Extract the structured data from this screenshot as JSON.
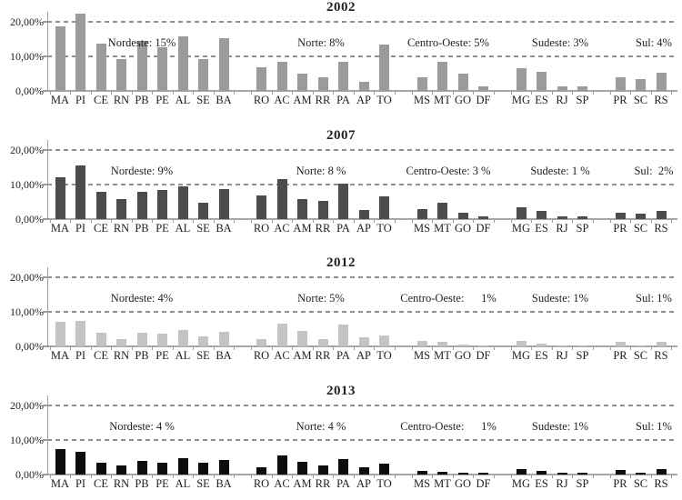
{
  "colors": {
    "background": "#ffffff",
    "text": "#1f1f1f",
    "gridline": "#8f8f8f",
    "axis": "#9c9c9c",
    "bar_2002": "#9b9b99",
    "bar_2007": "#4d4d4d",
    "bar_2012": "#c4c4c2",
    "bar_2013": "#0d0d0d"
  },
  "chart_data": [
    {
      "type": "bar",
      "title": "2002",
      "bar_color": "#9b9b99",
      "y_tick_labels": [
        "20,00%",
        "10,00%",
        "0,00%"
      ],
      "ylim": [
        0,
        23
      ],
      "grid": "dashed-horizontal",
      "unit": "percent",
      "groups": [
        {
          "region": "Nordeste",
          "annotation": "Nordeste: 15%",
          "states": [
            "MA",
            "PI",
            "CE",
            "RN",
            "PB",
            "PE",
            "AL",
            "SE",
            "BA"
          ],
          "values": [
            18.8,
            22.4,
            13.8,
            9.3,
            14.4,
            12.6,
            15.8,
            9.3,
            15.3
          ]
        },
        {
          "region": "Norte",
          "annotation": "Norte: 8%",
          "states": [
            "RO",
            "AC",
            "AM",
            "RR",
            "PA",
            "AP",
            "TO"
          ],
          "values": [
            6.8,
            8.5,
            5.0,
            4.0,
            8.5,
            2.6,
            13.5
          ]
        },
        {
          "region": "Centro-Oeste",
          "annotation": "Centro-Oeste: 5%",
          "states": [
            "MS",
            "MT",
            "GO",
            "DF"
          ],
          "values": [
            4.0,
            8.5,
            4.9,
            1.3
          ]
        },
        {
          "region": "Sudeste",
          "annotation": "Sudeste: 3%",
          "states": [
            "MG",
            "ES",
            "RJ",
            "SP"
          ],
          "values": [
            6.7,
            5.4,
            1.3,
            1.3
          ]
        },
        {
          "region": "Sul",
          "annotation": "Sul: 4%",
          "states": [
            "PR",
            "SC",
            "RS"
          ],
          "values": [
            4.0,
            3.4,
            5.3
          ]
        }
      ]
    },
    {
      "type": "bar",
      "title": "2007",
      "bar_color": "#4d4d4d",
      "y_tick_labels": [
        "20,00%",
        "10,00%",
        "0,00%"
      ],
      "ylim": [
        0,
        23
      ],
      "grid": "dashed-horizontal",
      "unit": "percent",
      "groups": [
        {
          "region": "Nordeste",
          "annotation": "Nordeste: 9%",
          "states": [
            "MA",
            "PI",
            "CE",
            "RN",
            "PB",
            "PE",
            "AL",
            "SE",
            "BA"
          ],
          "values": [
            12.2,
            15.4,
            8.0,
            5.7,
            8.0,
            8.4,
            9.6,
            4.8,
            8.7
          ]
        },
        {
          "region": "Norte",
          "annotation": "Norte: 8 %",
          "states": [
            "RO",
            "AC",
            "AM",
            "RR",
            "PA",
            "AP",
            "TO"
          ],
          "values": [
            6.8,
            11.6,
            5.9,
            5.3,
            10.2,
            2.6,
            6.6
          ]
        },
        {
          "region": "Centro-Oeste",
          "annotation": "Centro-Oeste: 3 %",
          "states": [
            "MS",
            "MT",
            "GO",
            "DF"
          ],
          "values": [
            2.9,
            4.8,
            1.9,
            0.8
          ]
        },
        {
          "region": "Sudeste",
          "annotation": "Sudeste: 1 %",
          "states": [
            "MG",
            "ES",
            "RJ",
            "SP"
          ],
          "values": [
            3.3,
            2.3,
            0.7,
            0.8
          ]
        },
        {
          "region": "Sul",
          "annotation": "Sul:  2%",
          "states": [
            "PR",
            "SC",
            "RS"
          ],
          "values": [
            1.8,
            1.5,
            2.3
          ]
        }
      ]
    },
    {
      "type": "bar",
      "title": "2012",
      "bar_color": "#c4c4c2",
      "y_tick_labels": [
        "20,00%",
        "10,00%",
        "0,00%"
      ],
      "ylim": [
        0,
        23
      ],
      "grid": "dashed-horizontal",
      "unit": "percent",
      "groups": [
        {
          "region": "Nordeste",
          "annotation": "Nordeste: 4%",
          "states": [
            "MA",
            "PI",
            "CE",
            "RN",
            "PB",
            "PE",
            "AL",
            "SE",
            "BA"
          ],
          "values": [
            7.0,
            7.4,
            4.0,
            2.2,
            4.0,
            3.6,
            4.8,
            2.9,
            4.3
          ]
        },
        {
          "region": "Norte",
          "annotation": "Norte: 5%",
          "states": [
            "RO",
            "AC",
            "AM",
            "RR",
            "PA",
            "AP",
            "TO"
          ],
          "values": [
            2.2,
            6.6,
            4.4,
            2.2,
            6.3,
            2.5,
            3.2
          ]
        },
        {
          "region": "Centro-Oeste",
          "annotation": "Centro-Oeste:      1%",
          "states": [
            "MS",
            "MT",
            "GO",
            "DF"
          ],
          "values": [
            1.6,
            1.2,
            0.6,
            0.2
          ]
        },
        {
          "region": "Sudeste",
          "annotation": "Sudeste: 1%",
          "states": [
            "MG",
            "ES",
            "RJ",
            "SP"
          ],
          "values": [
            1.6,
            0.9,
            0.3,
            0.2
          ]
        },
        {
          "region": "Sul",
          "annotation": "Sul: 1%",
          "states": [
            "PR",
            "SC",
            "RS"
          ],
          "values": [
            1.3,
            0.3,
            1.3
          ]
        }
      ]
    },
    {
      "type": "bar",
      "title": "2013",
      "bar_color": "#0d0d0d",
      "y_tick_labels": [
        "20,00%",
        "10,00%",
        "0,00%"
      ],
      "ylim": [
        0,
        23
      ],
      "grid": "dashed-horizontal",
      "unit": "percent",
      "groups": [
        {
          "region": "Nordeste",
          "annotation": "Nordeste: 4 %",
          "states": [
            "MA",
            "PI",
            "CE",
            "RN",
            "PB",
            "PE",
            "AL",
            "SE",
            "BA"
          ],
          "values": [
            7.3,
            6.5,
            3.4,
            2.5,
            3.9,
            3.3,
            4.7,
            3.5,
            4.2
          ]
        },
        {
          "region": "Norte",
          "annotation": "Norte: 4 %",
          "states": [
            "RO",
            "AC",
            "AM",
            "RR",
            "PA",
            "AP",
            "TO"
          ],
          "values": [
            2.0,
            5.5,
            3.8,
            2.5,
            4.6,
            2.0,
            3.2
          ]
        },
        {
          "region": "Centro-Oeste",
          "annotation": "Centro-Oeste:      1%",
          "states": [
            "MS",
            "MT",
            "GO",
            "DF"
          ],
          "values": [
            1.0,
            0.9,
            0.4,
            0.6
          ]
        },
        {
          "region": "Sudeste",
          "annotation": "Sudeste: 1%",
          "states": [
            "MG",
            "ES",
            "RJ",
            "SP"
          ],
          "values": [
            1.5,
            1.0,
            0.5,
            0.5
          ]
        },
        {
          "region": "Sul",
          "annotation": "Sul: 1%",
          "states": [
            "PR",
            "SC",
            "RS"
          ],
          "values": [
            1.2,
            0.4,
            1.5
          ]
        }
      ]
    }
  ]
}
